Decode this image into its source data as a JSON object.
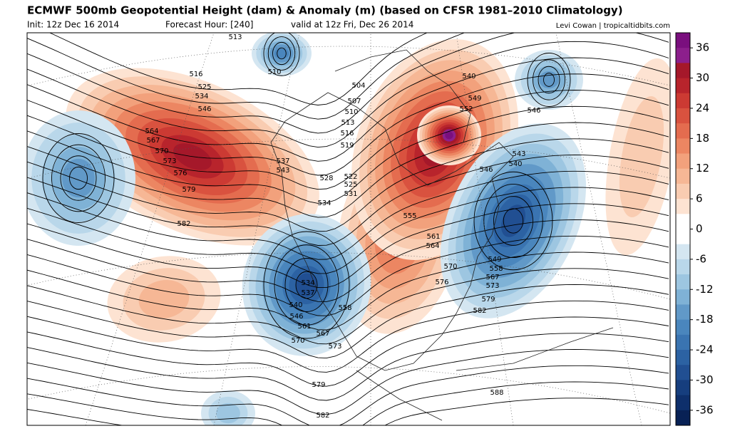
{
  "header": {
    "title": "ECMWF 500mb Geopotential Height (dam) & Anomaly (m) (based on CFSR 1981–2010 Climatology)",
    "init": "Init: 12z Dec 16 2014",
    "forecast": "Forecast Hour: [240]",
    "valid": "valid at 12z Fri, Dec 26 2014",
    "credit": "Levi Cowan | tropicaltidbits.com"
  },
  "colorbar": {
    "lim": [
      -39,
      39
    ],
    "ticks": [
      36,
      30,
      24,
      18,
      12,
      6,
      0,
      -6,
      -12,
      -18,
      -24,
      -30,
      -36
    ],
    "colors": [
      "#7a0f7e",
      "#8c1f8c",
      "#a5182a",
      "#b8242c",
      "#cc3a33",
      "#d9523f",
      "#e46c4f",
      "#ec8662",
      "#f2a17c",
      "#f6b795",
      "#f9ccb1",
      "#fde3d2",
      "#ffffff",
      "#ffffff",
      "#d4e6f1",
      "#b9d7ea",
      "#9dc6e1",
      "#7fb2d6",
      "#6199c8",
      "#4a86bd",
      "#3a74b1",
      "#2c62a3",
      "#214f92",
      "#163e7e",
      "#0e2f6b",
      "#082155"
    ]
  },
  "contour_labels": [
    513,
    510,
    516,
    525,
    534,
    546,
    564,
    567,
    570,
    573,
    576,
    579,
    582,
    537,
    543,
    528,
    522,
    525,
    531,
    534,
    504,
    507,
    510,
    513,
    516,
    519,
    540,
    549,
    552,
    546,
    543,
    540,
    546,
    555,
    561,
    564,
    549,
    558,
    567,
    573,
    570,
    576,
    579,
    582,
    534,
    537,
    540,
    546,
    558,
    561,
    567,
    570,
    573,
    579,
    588,
    582
  ]
}
